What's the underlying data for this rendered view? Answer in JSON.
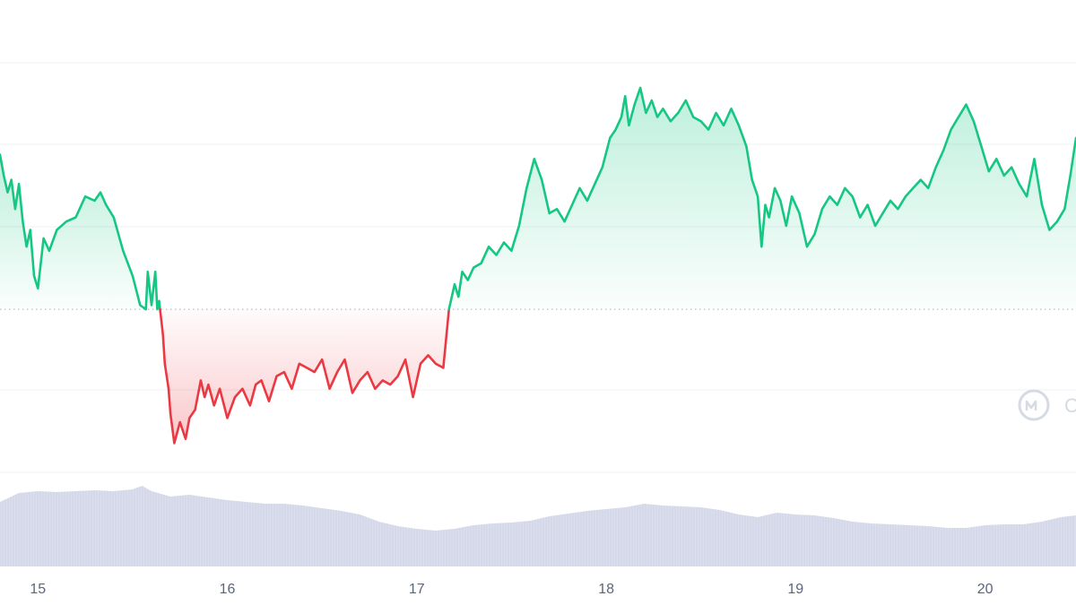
{
  "chart_data": {
    "type": "area",
    "title": "",
    "xlabel": "",
    "ylabel": "",
    "x_tick_labels": [
      "15",
      "16",
      "17",
      "18",
      "19",
      "20"
    ],
    "x_domain": [
      14.8,
      20.48
    ],
    "baseline_value": 0.0,
    "y_domain": [
      -1.95,
      2.95
    ],
    "grid": "horizontal",
    "colors": {
      "up_line": "#16c784",
      "down_line": "#ea3943",
      "up_fill": "#16c784",
      "down_fill": "#ea3943",
      "baseline": "#b8bec9",
      "grid": "#eef0f3",
      "volume": "#cfd3e6",
      "tick_text": "#58667e",
      "watermark": "#d5dae3"
    },
    "series": [
      {
        "values_x": [
          14.8,
          14.82,
          14.84,
          14.86,
          14.88,
          14.9,
          14.92,
          14.94,
          14.96,
          14.98,
          15.0,
          15.03,
          15.06,
          15.1,
          15.15,
          15.2,
          15.25,
          15.3,
          15.33,
          15.36,
          15.4,
          15.45,
          15.5,
          15.54,
          15.57,
          15.58,
          15.6,
          15.62,
          15.63,
          15.64,
          15.66,
          15.67,
          15.69,
          15.7,
          15.72,
          15.75,
          15.78,
          15.8,
          15.83,
          15.86,
          15.88,
          15.9,
          15.93,
          15.96,
          16.0,
          16.04,
          16.08,
          16.12,
          16.15,
          16.18,
          16.22,
          16.26,
          16.3,
          16.34,
          16.38,
          16.42,
          16.46,
          16.5,
          16.54,
          16.58,
          16.62,
          16.66,
          16.7,
          16.74,
          16.78,
          16.82,
          16.86,
          16.9,
          16.94,
          16.98,
          17.02,
          17.06,
          17.1,
          17.14,
          17.17,
          17.2,
          17.22,
          17.24,
          17.27,
          17.3,
          17.34,
          17.38,
          17.42,
          17.46,
          17.5,
          17.54,
          17.58,
          17.62,
          17.66,
          17.7,
          17.74,
          17.78,
          17.82,
          17.86,
          17.9,
          17.94,
          17.98,
          18.02,
          18.05,
          18.08,
          18.1,
          18.12,
          18.15,
          18.18,
          18.21,
          18.24,
          18.27,
          18.3,
          18.34,
          18.38,
          18.42,
          18.46,
          18.5,
          18.54,
          18.58,
          18.62,
          18.66,
          18.7,
          18.74,
          18.77,
          18.8,
          18.82,
          18.84,
          18.86,
          18.89,
          18.92,
          18.95,
          18.98,
          19.02,
          19.06,
          19.1,
          19.14,
          19.18,
          19.22,
          19.26,
          19.3,
          19.34,
          19.38,
          19.42,
          19.46,
          19.5,
          19.54,
          19.58,
          19.62,
          19.66,
          19.7,
          19.74,
          19.78,
          19.82,
          19.86,
          19.9,
          19.94,
          19.98,
          20.02,
          20.06,
          20.1,
          20.14,
          20.18,
          20.22,
          20.26,
          20.3,
          20.34,
          20.38,
          20.42,
          20.45,
          20.48
        ],
        "values_y": [
          1.85,
          1.6,
          1.4,
          1.55,
          1.2,
          1.5,
          1.05,
          0.75,
          0.95,
          0.4,
          0.25,
          0.85,
          0.7,
          0.95,
          1.05,
          1.1,
          1.35,
          1.3,
          1.4,
          1.25,
          1.1,
          0.7,
          0.4,
          0.05,
          0.0,
          0.45,
          0.05,
          0.45,
          0.0,
          0.1,
          -0.3,
          -0.65,
          -0.95,
          -1.25,
          -1.6,
          -1.35,
          -1.55,
          -1.3,
          -1.2,
          -0.85,
          -1.05,
          -0.9,
          -1.15,
          -0.95,
          -1.3,
          -1.05,
          -0.95,
          -1.15,
          -0.9,
          -0.85,
          -1.1,
          -0.8,
          -0.75,
          -0.95,
          -0.65,
          -0.7,
          -0.75,
          -0.6,
          -0.95,
          -0.75,
          -0.6,
          -1.0,
          -0.85,
          -0.75,
          -0.95,
          -0.85,
          -0.9,
          -0.8,
          -0.6,
          -1.05,
          -0.65,
          -0.55,
          -0.65,
          -0.7,
          0.0,
          0.3,
          0.15,
          0.45,
          0.35,
          0.5,
          0.55,
          0.75,
          0.65,
          0.8,
          0.7,
          1.0,
          1.45,
          1.8,
          1.55,
          1.15,
          1.2,
          1.05,
          1.25,
          1.45,
          1.3,
          1.5,
          1.7,
          2.05,
          2.15,
          2.3,
          2.55,
          2.2,
          2.45,
          2.65,
          2.35,
          2.5,
          2.3,
          2.4,
          2.25,
          2.35,
          2.5,
          2.3,
          2.25,
          2.15,
          2.35,
          2.2,
          2.4,
          2.2,
          1.95,
          1.55,
          1.35,
          0.75,
          1.25,
          1.1,
          1.45,
          1.3,
          1.0,
          1.35,
          1.15,
          0.75,
          0.9,
          1.2,
          1.35,
          1.25,
          1.45,
          1.35,
          1.1,
          1.25,
          1.0,
          1.15,
          1.3,
          1.2,
          1.35,
          1.45,
          1.55,
          1.45,
          1.7,
          1.9,
          2.15,
          2.3,
          2.45,
          2.25,
          1.95,
          1.65,
          1.8,
          1.6,
          1.7,
          1.5,
          1.35,
          1.8,
          1.25,
          0.95,
          1.05,
          1.2,
          1.6,
          2.05
        ]
      }
    ],
    "volume": {
      "values_x": [
        14.8,
        14.9,
        15.0,
        15.1,
        15.2,
        15.3,
        15.4,
        15.5,
        15.55,
        15.6,
        15.7,
        15.8,
        15.9,
        16.0,
        16.1,
        16.2,
        16.3,
        16.4,
        16.5,
        16.6,
        16.7,
        16.8,
        16.9,
        17.0,
        17.1,
        17.2,
        17.3,
        17.4,
        17.5,
        17.6,
        17.7,
        17.8,
        17.9,
        18.0,
        18.1,
        18.2,
        18.3,
        18.4,
        18.5,
        18.6,
        18.7,
        18.8,
        18.9,
        19.0,
        19.1,
        19.2,
        19.3,
        19.4,
        19.5,
        19.6,
        19.7,
        19.8,
        19.9,
        20.0,
        20.1,
        20.2,
        20.3,
        20.4,
        20.48
      ],
      "values_y": [
        0.72,
        0.82,
        0.84,
        0.83,
        0.84,
        0.85,
        0.84,
        0.86,
        0.9,
        0.84,
        0.78,
        0.8,
        0.77,
        0.74,
        0.72,
        0.7,
        0.7,
        0.68,
        0.65,
        0.62,
        0.58,
        0.5,
        0.45,
        0.42,
        0.4,
        0.42,
        0.46,
        0.48,
        0.49,
        0.51,
        0.56,
        0.59,
        0.62,
        0.64,
        0.66,
        0.7,
        0.68,
        0.67,
        0.66,
        0.63,
        0.58,
        0.55,
        0.6,
        0.58,
        0.57,
        0.54,
        0.5,
        0.48,
        0.47,
        0.46,
        0.45,
        0.43,
        0.43,
        0.46,
        0.47,
        0.47,
        0.5,
        0.55,
        0.57
      ]
    }
  },
  "watermark": {
    "icon": "coinmarketcap-logo-icon",
    "text": "C"
  }
}
